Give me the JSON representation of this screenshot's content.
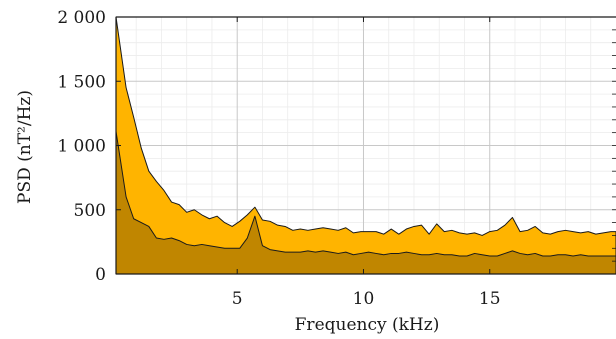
{
  "chart_data": {
    "type": "area",
    "title": "",
    "xlabel": "Frequency (kHz)",
    "ylabel": "PSD (nT²/Hz)",
    "xlim": [
      0.2,
      20
    ],
    "ylim": [
      0,
      2000
    ],
    "xticks": [
      5,
      10,
      15
    ],
    "xtick_labels": [
      "5",
      "10",
      "15"
    ],
    "yticks": [
      0,
      500,
      1000,
      1500,
      2000
    ],
    "ytick_labels": [
      "0",
      "500",
      "1 000",
      "1 500",
      "2 000"
    ],
    "grid": true,
    "legend": "none",
    "x": [
      0.2,
      0.6,
      0.9,
      1.2,
      1.5,
      1.8,
      2.1,
      2.4,
      2.7,
      3.0,
      3.3,
      3.6,
      3.9,
      4.2,
      4.5,
      4.8,
      5.1,
      5.4,
      5.7,
      6.0,
      6.3,
      6.6,
      6.9,
      7.2,
      7.5,
      7.8,
      8.1,
      8.4,
      8.7,
      9.0,
      9.3,
      9.6,
      9.9,
      10.2,
      10.5,
      10.8,
      11.1,
      11.4,
      11.7,
      12.0,
      12.3,
      12.6,
      12.9,
      13.2,
      13.5,
      13.8,
      14.1,
      14.4,
      14.7,
      15.0,
      15.3,
      15.6,
      15.9,
      16.2,
      16.5,
      16.8,
      17.1,
      17.4,
      17.7,
      18.0,
      18.3,
      18.6,
      18.9,
      19.2,
      19.5,
      19.8,
      20.0
    ],
    "series": [
      {
        "values": [
          2000,
          1450,
          1220,
          980,
          800,
          720,
          650,
          560,
          540,
          480,
          500,
          460,
          430,
          450,
          400,
          370,
          410,
          460,
          520,
          420,
          410,
          380,
          370,
          340,
          350,
          340,
          350,
          360,
          350,
          340,
          360,
          320,
          330,
          330,
          330,
          310,
          350,
          310,
          350,
          370,
          380,
          310,
          390,
          330,
          340,
          320,
          310,
          320,
          300,
          330,
          340,
          380,
          440,
          330,
          340,
          370,
          320,
          310,
          330,
          340,
          330,
          320,
          330,
          310,
          320,
          330,
          330
        ],
        "color": "#ffb400"
      },
      {
        "values": [
          1110,
          600,
          430,
          400,
          370,
          280,
          270,
          280,
          260,
          230,
          220,
          230,
          220,
          210,
          200,
          200,
          200,
          280,
          450,
          220,
          190,
          180,
          170,
          170,
          170,
          180,
          170,
          180,
          170,
          160,
          170,
          150,
          160,
          170,
          160,
          150,
          160,
          160,
          170,
          160,
          150,
          150,
          160,
          150,
          150,
          140,
          140,
          160,
          150,
          140,
          140,
          160,
          180,
          160,
          150,
          160,
          140,
          140,
          150,
          150,
          140,
          150,
          140,
          140,
          140,
          140,
          140
        ],
        "color": "#c08600"
      }
    ]
  }
}
